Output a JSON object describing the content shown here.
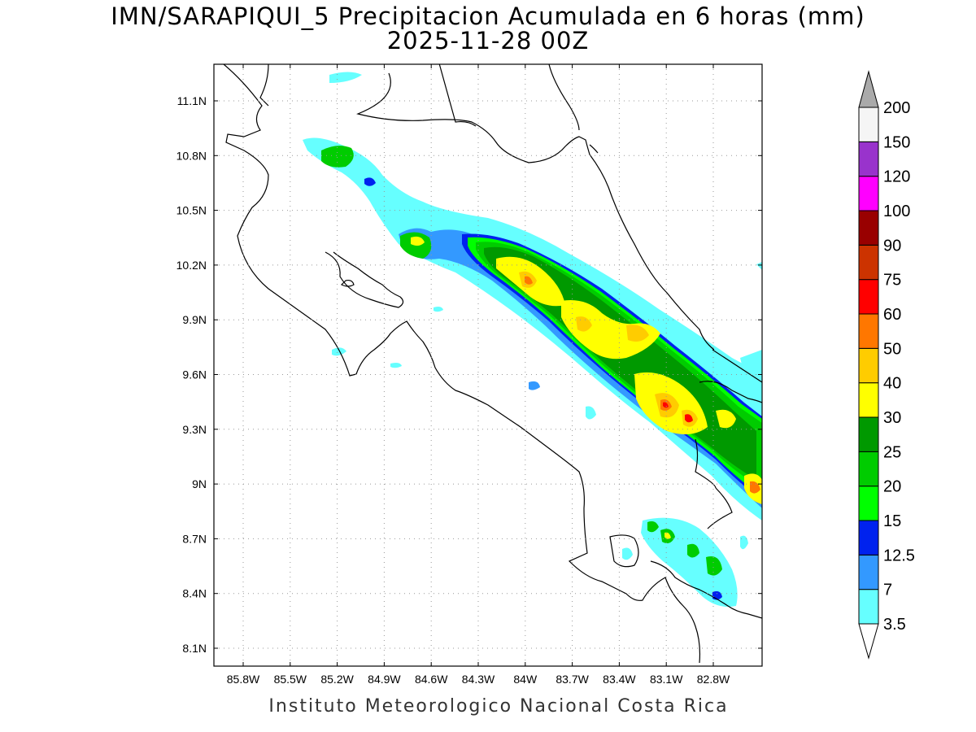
{
  "title": {
    "line1": "IMN/SARAPIQUI_5 Precipitacion Acumulada en 6 horas (mm)",
    "line2": "2025-11-28 00Z"
  },
  "credit": "Instituto Meteorologico Nacional Costa Rica",
  "axes": {
    "lon_labels": [
      "85.8W",
      "85.5W",
      "85.2W",
      "84.9W",
      "84.6W",
      "84.3W",
      "84W",
      "83.7W",
      "83.4W",
      "83.1W",
      "82.8W"
    ],
    "lat_labels": [
      "11.1N",
      "10.8N",
      "10.5N",
      "10.2N",
      "9.9N",
      "9.6N",
      "9.3N",
      "9N",
      "8.7N",
      "8.4N",
      "8.1N"
    ],
    "lon_values": [
      -85.8,
      -85.5,
      -85.2,
      -84.9,
      -84.6,
      -84.3,
      -84.0,
      -83.7,
      -83.4,
      -83.1,
      -82.8
    ],
    "lat_values": [
      11.1,
      10.8,
      10.5,
      10.2,
      9.9,
      9.6,
      9.3,
      9.0,
      8.7,
      8.4,
      8.1
    ],
    "grid": "dotted"
  },
  "colorbar": {
    "labels": [
      "3.5",
      "7",
      "12.5",
      "15",
      "20",
      "25",
      "30",
      "40",
      "50",
      "60",
      "75",
      "90",
      "100",
      "120",
      "150",
      "200"
    ],
    "colors": [
      "#66ffff",
      "#3399ff",
      "#0022ee",
      "#00ff00",
      "#00cc00",
      "#009900",
      "#ffff00",
      "#ffcc00",
      "#ff7700",
      "#ff0000",
      "#cc3300",
      "#990000",
      "#ff00ff",
      "#9933cc",
      "#f5f5f5"
    ],
    "over_color": "#aaaaaa"
  },
  "precip_bands": [
    {
      "level": "3.5",
      "color": "#66ffff",
      "lon": [
        -85.15,
        -83.05
      ],
      "lat": [
        10.86,
        9.1
      ]
    },
    {
      "level": "3.5",
      "color": "#66ffff",
      "lon": [
        -83.55,
        -82.75
      ],
      "lat": [
        9.55,
        8.85
      ]
    },
    {
      "level": "3.5",
      "color": "#66ffff",
      "lon": [
        -83.2,
        -82.75
      ],
      "lat": [
        8.75,
        8.4
      ]
    },
    {
      "level": "7",
      "color": "#3399ff",
      "lon": [
        -84.55,
        -83.45
      ],
      "lat": [
        10.3,
        9.65
      ]
    },
    {
      "level": "12.5",
      "color": "#0022ee",
      "lon": [
        -84.4,
        -83.15
      ],
      "lat": [
        10.26,
        9.4
      ]
    },
    {
      "level": "15",
      "color": "#00ff00",
      "lon": [
        -84.3,
        -82.95
      ],
      "lat": [
        10.2,
        9.1
      ]
    },
    {
      "level": "20",
      "color": "#00cc00",
      "lon": [
        -84.2,
        -82.9
      ],
      "lat": [
        10.15,
        9.05
      ]
    },
    {
      "level": "25",
      "color": "#009900",
      "lon": [
        -84.1,
        -82.85
      ],
      "lat": [
        10.08,
        9.0
      ]
    },
    {
      "level": "30",
      "color": "#ffff00",
      "lon": [
        -84.05,
        -83.1
      ],
      "lat": [
        10.1,
        9.35
      ]
    },
    {
      "level": "40",
      "color": "#ffcc00",
      "lon": [
        -84.0,
        -83.2
      ],
      "lat": [
        10.08,
        9.45
      ]
    },
    {
      "level": "50",
      "color": "#ff7700",
      "lon": [
        -83.75,
        -83.1
      ],
      "lat": [
        9.85,
        9.35
      ]
    }
  ]
}
